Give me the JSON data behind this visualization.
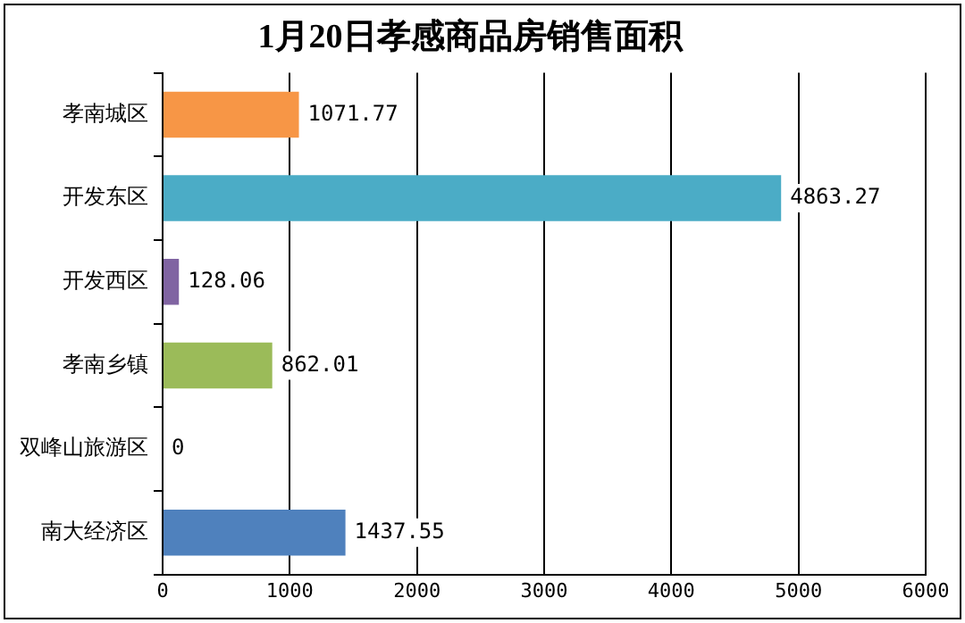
{
  "chart_data": {
    "type": "bar",
    "orientation": "horizontal",
    "title": "1月20日孝感商品房销售面积",
    "categories": [
      "孝南城区",
      "开发东区",
      "开发西区",
      "孝南乡镇",
      "双峰山旅游区",
      "南大经济区"
    ],
    "values": [
      1071.77,
      4863.27,
      128.06,
      862.01,
      0,
      1437.55
    ],
    "colors": [
      "#f79646",
      "#4bacc6",
      "#8064a2",
      "#9bbb59",
      "#c0504d",
      "#4f81bd"
    ],
    "xlim": [
      0,
      6000
    ],
    "xticks": [
      0,
      1000,
      2000,
      3000,
      4000,
      5000,
      6000
    ],
    "grid": "x",
    "data_labels": true,
    "legend": false
  }
}
